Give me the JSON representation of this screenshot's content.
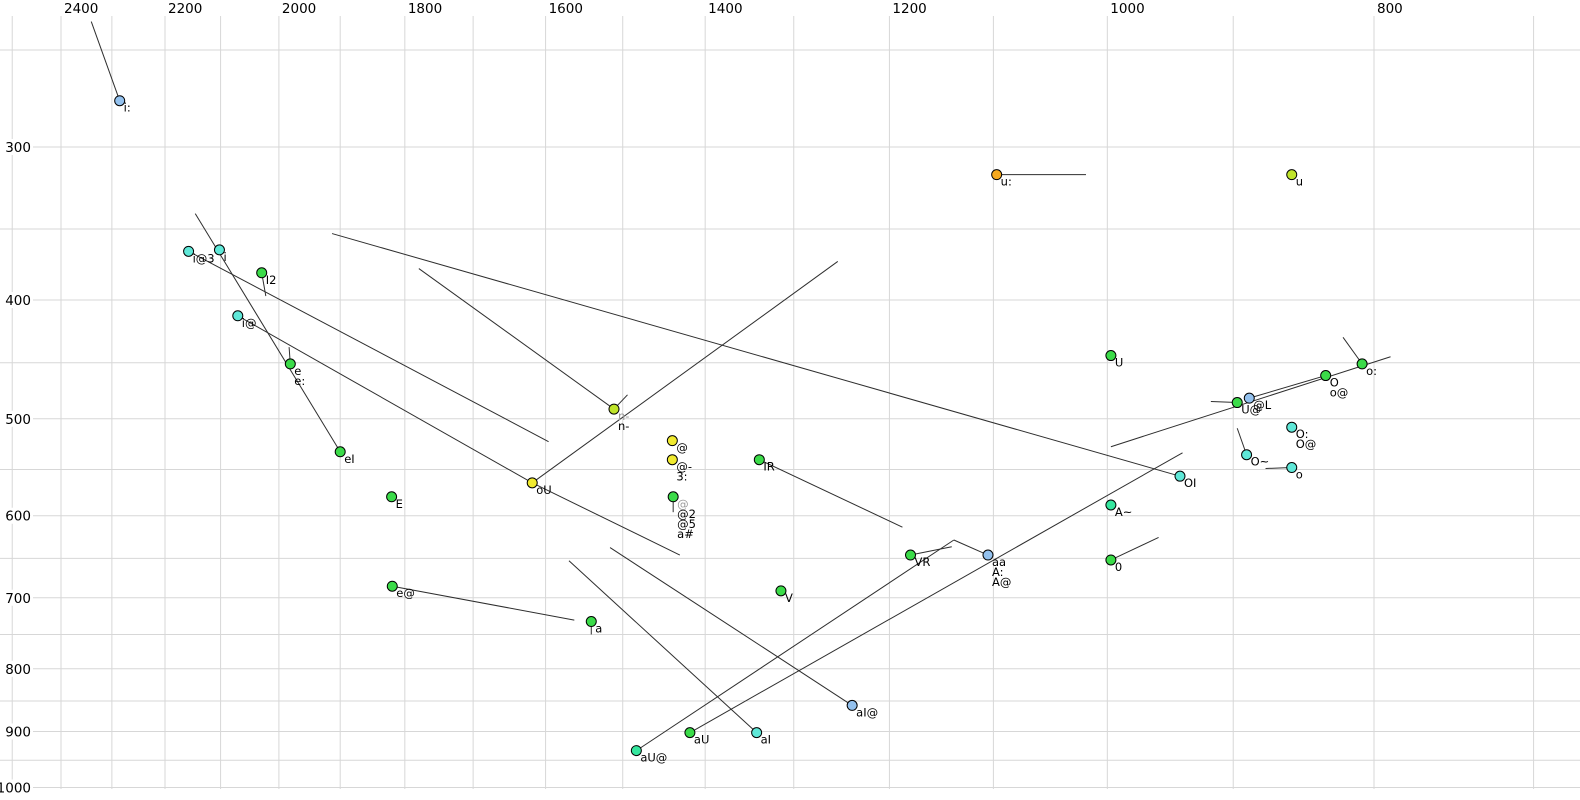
{
  "chart_data": {
    "type": "scatter",
    "title": "",
    "description": "Vowel formant plot (F2 horizontal reversed log scale, F1 vertical log scale), SAMPA-labelled vowel tokens with offglide trajectory lines",
    "x_axis": {
      "ticks": [
        "2400",
        "2200",
        "2000",
        "1800",
        "1600",
        "1400",
        "1200",
        "1000",
        "800"
      ],
      "tick_values": [
        2400,
        2200,
        2000,
        1800,
        1600,
        1400,
        1200,
        1000,
        800
      ],
      "scale": "log",
      "reversed": true,
      "grid_step": 100,
      "grid_min": 700,
      "grid_max": 2500
    },
    "y_axis": {
      "ticks": [
        "300",
        "400",
        "500",
        "600",
        "700",
        "800",
        "900",
        "1000"
      ],
      "tick_values": [
        300,
        400,
        500,
        600,
        700,
        800,
        900,
        1000
      ],
      "scale": "log",
      "increases_downward": true,
      "grid_step": 50,
      "grid_min": 250,
      "grid_max": 1000
    },
    "points": [
      {
        "label": "i:",
        "labels": [
          {
            "text": "i:"
          }
        ],
        "f2": 2285,
        "f1": 275,
        "fill": "lightblue",
        "tails": [
          [
            2340,
            237
          ]
        ]
      },
      {
        "label": "i@3",
        "labels": [
          {
            "text": "i@3"
          }
        ],
        "f2": 2157,
        "f1": 365,
        "fill": "cyan",
        "tails": [
          [
            1596,
            522
          ]
        ]
      },
      {
        "label": "i",
        "labels": [
          {
            "text": "i"
          }
        ],
        "f2": 2102,
        "f1": 364,
        "fill": "cyan",
        "tails": []
      },
      {
        "label": "I2",
        "labels": [
          {
            "text": "I2"
          }
        ],
        "f2": 2029,
        "f1": 380,
        "fill": "green",
        "tails": [
          [
            2022,
            397
          ]
        ]
      },
      {
        "label": "i@",
        "labels": [
          {
            "text": "i@"
          }
        ],
        "f2": 2070,
        "f1": 412,
        "fill": "cyan",
        "tails": [
          [
            1618,
            564
          ]
        ]
      },
      {
        "label": "e",
        "labels": [
          {
            "text": "e"
          },
          {
            "text": "e:"
          }
        ],
        "f2": 1981,
        "f1": 451,
        "fill": "green",
        "tails": [
          [
            1983,
            437
          ]
        ]
      },
      {
        "label": "eI",
        "labels": [
          {
            "text": "eI"
          }
        ],
        "f2": 1900,
        "f1": 532,
        "fill": "green",
        "tails": [
          [
            2145,
            340
          ]
        ]
      },
      {
        "label": "E",
        "labels": [
          {
            "text": "E"
          }
        ],
        "f2": 1820,
        "f1": 579,
        "fill": "green",
        "tails": []
      },
      {
        "label": "e@",
        "labels": [
          {
            "text": "e@"
          }
        ],
        "f2": 1819,
        "f1": 685,
        "fill": "green",
        "tails": [
          [
            1562,
            730
          ]
        ]
      },
      {
        "label": "oU",
        "labels": [
          {
            "text": "oU"
          }
        ],
        "f2": 1618,
        "f1": 564,
        "fill": "yellow",
        "tails": [
          [
            1430,
            646
          ],
          [
            1253,
            372
          ]
        ]
      },
      {
        "label": "n-",
        "labels": [
          {
            "text": "n-",
            "gray": true
          },
          {
            "text": "n-"
          }
        ],
        "f2": 1511,
        "f1": 491,
        "fill": "yellowgreen",
        "tails": [
          [
            1779,
            377
          ],
          [
            1494,
            478
          ]
        ]
      },
      {
        "label": "@",
        "labels": [
          {
            "text": "@"
          }
        ],
        "f2": 1439,
        "f1": 521,
        "fill": "yellow",
        "tails": []
      },
      {
        "label": "3:",
        "labels": [
          {
            "text": "@-"
          },
          {
            "text": "3:"
          }
        ],
        "f2": 1439,
        "f1": 540,
        "fill": "yellow",
        "tails": []
      },
      {
        "label": "@2",
        "labels": [
          {
            "text": "@",
            "gray": true
          },
          {
            "text": "@2"
          },
          {
            "text": "@5"
          },
          {
            "text": "a#"
          }
        ],
        "f2": 1438,
        "f1": 579,
        "fill": "green",
        "tails": [
          [
            1438,
            596
          ]
        ]
      },
      {
        "label": "IR",
        "labels": [
          {
            "text": "IR"
          }
        ],
        "f2": 1338,
        "f1": 540,
        "fill": "green",
        "tails": [
          [
            1187,
            613
          ]
        ]
      },
      {
        "label": "V",
        "labels": [
          {
            "text": "V"
          }
        ],
        "f2": 1314,
        "f1": 691,
        "fill": "green",
        "tails": []
      },
      {
        "label": "a",
        "labels": [
          {
            "text": "a"
          }
        ],
        "f2": 1540,
        "f1": 732,
        "fill": "green",
        "tails": [
          [
            1540,
            750
          ]
        ]
      },
      {
        "label": "aU@",
        "labels": [
          {
            "text": "aU@"
          }
        ],
        "f2": 1483,
        "f1": 933,
        "fill": "springgreen",
        "tails": [
          [
            1137,
            628
          ]
        ]
      },
      {
        "label": "aU",
        "labels": [
          {
            "text": "aU"
          }
        ],
        "f2": 1418,
        "f1": 902,
        "fill": "green",
        "tails": [
          [
            939,
            533
          ]
        ]
      },
      {
        "label": "aI",
        "labels": [
          {
            "text": "aI"
          }
        ],
        "f2": 1341,
        "f1": 902,
        "fill": "cyan",
        "tails": [
          [
            1569,
            653
          ]
        ]
      },
      {
        "label": "aI@",
        "labels": [
          {
            "text": "aI@"
          }
        ],
        "f2": 1238,
        "f1": 857,
        "fill": "lightblue",
        "tails": [
          [
            1516,
            637
          ]
        ]
      },
      {
        "label": "VR",
        "labels": [
          {
            "text": "VR"
          }
        ],
        "f2": 1179,
        "f1": 646,
        "fill": "green",
        "tails": [
          [
            1139,
            636
          ]
        ]
      },
      {
        "label": "aa",
        "labels": [
          {
            "text": "aa"
          },
          {
            "text": "A:"
          },
          {
            "text": "A@"
          }
        ],
        "f2": 1105,
        "f1": 646,
        "fill": "lightblue",
        "tails": [
          [
            1137,
            628
          ]
        ]
      },
      {
        "label": "u:",
        "labels": [
          {
            "text": "u:"
          }
        ],
        "f2": 1097,
        "f1": 316,
        "fill": "orange",
        "tails": [
          [
            1018,
            316
          ]
        ]
      },
      {
        "label": "u",
        "labels": [
          {
            "text": "u"
          }
        ],
        "f2": 857,
        "f1": 316,
        "fill": "yellowgreen",
        "tails": []
      },
      {
        "label": "U",
        "labels": [
          {
            "text": "U"
          }
        ],
        "f2": 997,
        "f1": 444,
        "fill": "green",
        "tails": []
      },
      {
        "label": "A~",
        "labels": [
          {
            "text": "A~"
          }
        ],
        "f2": 997,
        "f1": 588,
        "fill": "springgreen",
        "tails": []
      },
      {
        "label": "0",
        "labels": [
          {
            "text": "0"
          }
        ],
        "f2": 997,
        "f1": 652,
        "fill": "green",
        "tails": [
          [
            958,
            625
          ]
        ]
      },
      {
        "label": "OI",
        "labels": [
          {
            "text": "OI"
          }
        ],
        "f2": 941,
        "f1": 557,
        "fill": "cyan",
        "tails": [
          [
            1913,
            353
          ]
        ]
      },
      {
        "label": "U@",
        "labels": [
          {
            "text": "U@"
          }
        ],
        "f2": 897,
        "f1": 485,
        "fill": "green",
        "tails": [
          [
            917,
            484
          ]
        ]
      },
      {
        "label": "@L",
        "labels": [
          {
            "text": "@L"
          }
        ],
        "f2": 888,
        "f1": 481,
        "fill": "lightblue",
        "tails": [
          [
            833,
            461
          ]
        ]
      },
      {
        "label": "O",
        "labels": [
          {
            "text": "O"
          },
          {
            "text": "o@"
          }
        ],
        "f2": 833,
        "f1": 461,
        "fill": "green",
        "tails": []
      },
      {
        "label": "o:",
        "labels": [
          {
            "text": "o:"
          }
        ],
        "f2": 808,
        "f1": 451,
        "fill": "green",
        "tails": [
          [
            821,
            429
          ]
        ]
      },
      {
        "label": "O:",
        "labels": [
          {
            "text": "O:"
          },
          {
            "text": "O@"
          }
        ],
        "f2": 857,
        "f1": 508,
        "fill": "cyan",
        "tails": []
      },
      {
        "label": "O~",
        "labels": [
          {
            "text": "O~"
          }
        ],
        "f2": 890,
        "f1": 535,
        "fill": "cyan",
        "tails": [
          [
            897,
            509
          ]
        ]
      },
      {
        "label": "o",
        "labels": [
          {
            "text": "o"
          }
        ],
        "f2": 857,
        "f1": 548,
        "fill": "cyan",
        "tails": [
          [
            876,
            549
          ]
        ]
      }
    ],
    "segments": [
      {
        "from": [
          997,
          527
        ],
        "to": [
          789,
          445
        ]
      }
    ]
  },
  "colors": {
    "green": "#3bdb49",
    "cyan": "#5fe8d8",
    "lightblue": "#93c1ee",
    "yellow": "#f0ea2f",
    "yellowgreen": "#bfe42a",
    "orange": "#f5a91e",
    "springgreen": "#35e69e",
    "gridline": "#d7d7d7",
    "line": "#2e2e2e",
    "point_stroke": "#000000",
    "label": "#000000",
    "gray_label": "#9a9a9a",
    "axis_label": "#000000",
    "background": "#ffffff"
  }
}
